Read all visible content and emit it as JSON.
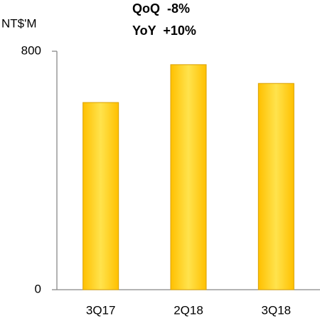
{
  "chart_data": {
    "type": "bar",
    "y_axis_label": "NT$'M",
    "annotations": [
      "QoQ  -8%",
      "YoY  +10%"
    ],
    "categories": [
      "3Q17",
      "2Q18",
      "3Q18"
    ],
    "values": [
      628,
      755,
      692
    ],
    "color": "#ffc000",
    "ylim": [
      0,
      800
    ],
    "yticks": [
      0,
      800
    ],
    "grid": false
  }
}
